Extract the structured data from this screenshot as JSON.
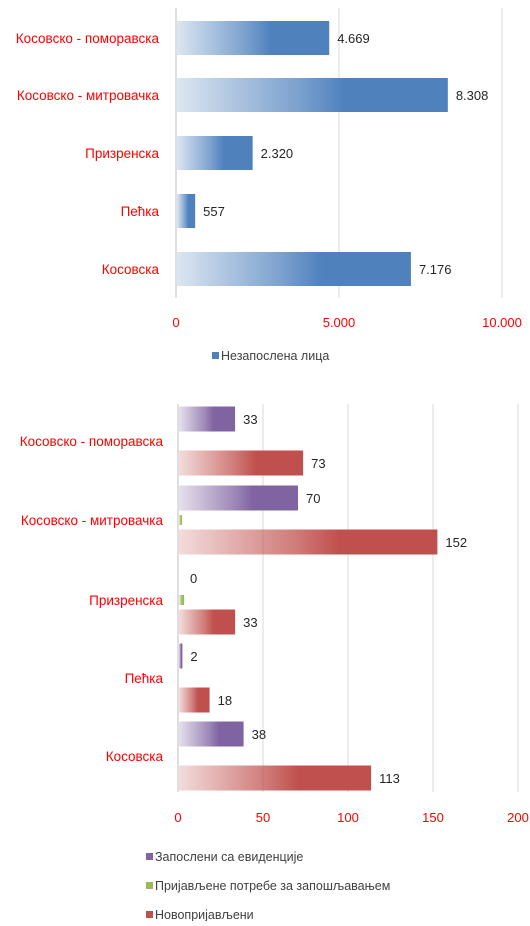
{
  "colors": {
    "red_label": "#ff0000",
    "blue": "#4f81bd",
    "purple": "#8064a2",
    "green": "#9bbb59",
    "red": "#c0504d",
    "grid": "#d9d9d9",
    "value_text": "#262626",
    "legend_text": "#404040"
  },
  "chart_data": [
    {
      "type": "bar",
      "orientation": "horizontal",
      "categories": [
        "Косовско - поморавска",
        "Косовско - митровачка",
        "Призренска",
        "Пећка",
        "Косовска"
      ],
      "series": [
        {
          "name": "Незапослена лица",
          "values": [
            4669,
            8308,
            2320,
            557,
            7176
          ],
          "labels": [
            "4.669",
            "8.308",
            "2.320",
            "557",
            "7.176"
          ],
          "color": "#4f81bd"
        }
      ],
      "xlim": [
        0,
        10000
      ],
      "ticks": [
        0,
        5000,
        10000
      ],
      "tick_labels": [
        "0",
        "5.000",
        "10.000"
      ],
      "grid": true,
      "legend": "bottom",
      "gradient_fill": true
    },
    {
      "type": "bar",
      "orientation": "horizontal",
      "categories": [
        "Косовско - поморавска",
        "Косовско - митровачка",
        "Призренска",
        "Пећка",
        "Косовска"
      ],
      "series": [
        {
          "name": "Запослени са евиденције",
          "values": [
            33,
            70,
            0,
            2,
            38
          ],
          "labels": [
            "33",
            "70",
            "0",
            "2",
            "38"
          ],
          "color": "#8064a2"
        },
        {
          "name": "Пријављене потребе за запошљавањем",
          "values": [
            0,
            1,
            3,
            0,
            0
          ],
          "labels": [
            "",
            "",
            "",
            "",
            ""
          ],
          "color": "#9bbb59"
        },
        {
          "name": "Новопријављени",
          "values": [
            73,
            152,
            33,
            18,
            113
          ],
          "labels": [
            "73",
            "152",
            "33",
            "18",
            "113"
          ],
          "color": "#c0504d"
        }
      ],
      "xlim": [
        0,
        200
      ],
      "ticks": [
        0,
        50,
        100,
        150,
        200
      ],
      "tick_labels": [
        "0",
        "50",
        "100",
        "150",
        "200"
      ],
      "grid": true,
      "legend": "bottom",
      "gradient_fill": true
    }
  ]
}
